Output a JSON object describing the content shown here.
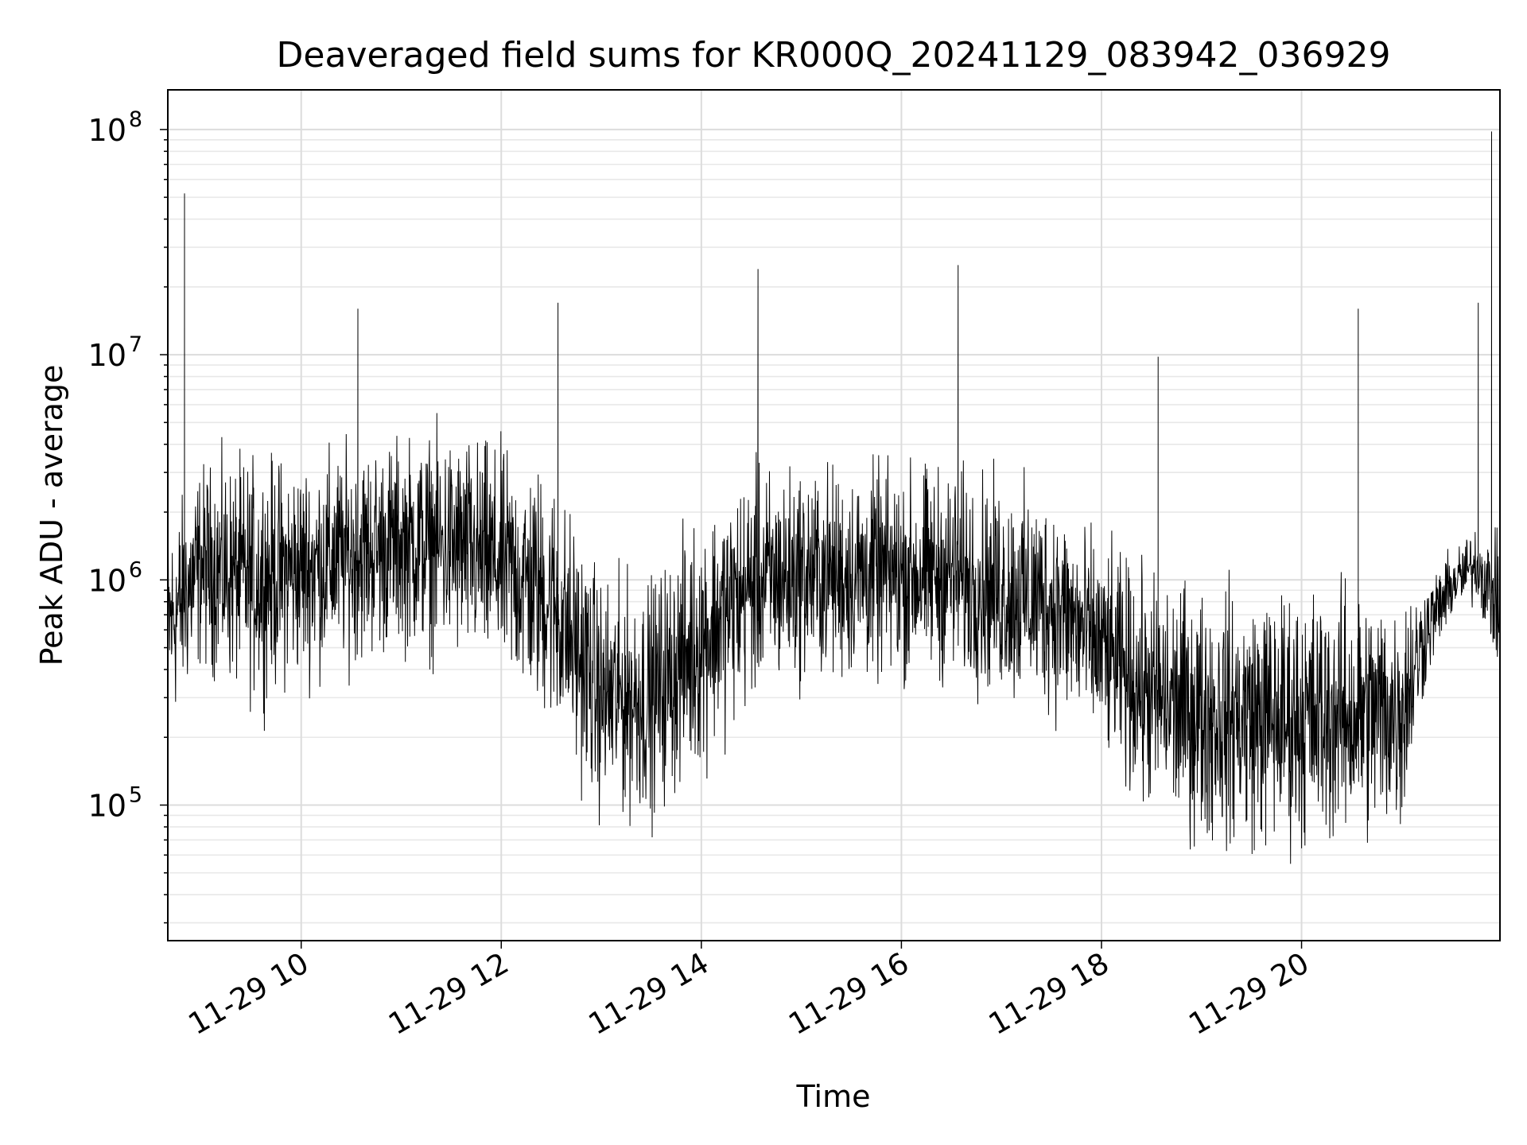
{
  "chart_data": {
    "type": "line",
    "title": "Deaveraged field sums for KR000Q_20241129_083942_036929",
    "xlabel": "Time",
    "ylabel": "Peak ADU - average",
    "yscale": "log",
    "ylim": [
      25000,
      150000000
    ],
    "xlim": [
      "2024-11-29 08:40",
      "2024-11-29 21:59"
    ],
    "grid": true,
    "line_color": "#000000",
    "x_ticks": [
      {
        "t": "2024-11-29 10:00",
        "label": "11-29 10"
      },
      {
        "t": "2024-11-29 12:00",
        "label": "11-29 12"
      },
      {
        "t": "2024-11-29 14:00",
        "label": "11-29 14"
      },
      {
        "t": "2024-11-29 16:00",
        "label": "11-29 16"
      },
      {
        "t": "2024-11-29 18:00",
        "label": "11-29 18"
      },
      {
        "t": "2024-11-29 20:00",
        "label": "11-29 20"
      }
    ],
    "y_ticks": [
      {
        "value": 100000,
        "base": "10",
        "exp": "5"
      },
      {
        "value": 1000000,
        "base": "10",
        "exp": "6"
      },
      {
        "value": 10000000,
        "base": "10",
        "exp": "7"
      },
      {
        "value": 100000000,
        "base": "10",
        "exp": "8"
      }
    ],
    "envelope": [
      {
        "t": "2024-11-29 08:40",
        "low": 150000,
        "high": 2500000
      },
      {
        "t": "2024-11-29 09:00",
        "low": 300000,
        "high": 4500000
      },
      {
        "t": "2024-11-29 09:30",
        "low": 200000,
        "high": 5000000
      },
      {
        "t": "2024-11-29 10:00",
        "low": 250000,
        "high": 5000000
      },
      {
        "t": "2024-11-29 10:30",
        "low": 300000,
        "high": 5500000
      },
      {
        "t": "2024-11-29 11:00",
        "low": 350000,
        "high": 6000000
      },
      {
        "t": "2024-11-29 11:30",
        "low": 300000,
        "high": 6500000
      },
      {
        "t": "2024-11-29 12:00",
        "low": 250000,
        "high": 5500000
      },
      {
        "t": "2024-11-29 12:30",
        "low": 150000,
        "high": 4500000
      },
      {
        "t": "2024-11-29 13:00",
        "low": 60000,
        "high": 1500000
      },
      {
        "t": "2024-11-29 13:30",
        "low": 60000,
        "high": 1500000
      },
      {
        "t": "2024-11-29 14:00",
        "low": 100000,
        "high": 3000000
      },
      {
        "t": "2024-11-29 14:30",
        "low": 200000,
        "high": 4500000
      },
      {
        "t": "2024-11-29 15:00",
        "low": 250000,
        "high": 4500000
      },
      {
        "t": "2024-11-29 15:30",
        "low": 250000,
        "high": 4500000
      },
      {
        "t": "2024-11-29 16:00",
        "low": 250000,
        "high": 4500000
      },
      {
        "t": "2024-11-29 16:30",
        "low": 250000,
        "high": 4500000
      },
      {
        "t": "2024-11-29 17:00",
        "low": 200000,
        "high": 4000000
      },
      {
        "t": "2024-11-29 17:30",
        "low": 180000,
        "high": 3500000
      },
      {
        "t": "2024-11-29 18:00",
        "low": 120000,
        "high": 2000000
      },
      {
        "t": "2024-11-29 18:30",
        "low": 60000,
        "high": 1500000
      },
      {
        "t": "2024-11-29 19:00",
        "low": 45000,
        "high": 1400000
      },
      {
        "t": "2024-11-29 19:30",
        "low": 42000,
        "high": 1400000
      },
      {
        "t": "2024-11-29 20:00",
        "low": 42000,
        "high": 1400000
      },
      {
        "t": "2024-11-29 20:30",
        "low": 45000,
        "high": 1400000
      },
      {
        "t": "2024-11-29 21:00",
        "low": 50000,
        "high": 1400000
      },
      {
        "t": "2024-11-29 21:15",
        "low": 300000,
        "high": 1200000
      },
      {
        "t": "2024-11-29 21:30",
        "low": 600000,
        "high": 1500000
      },
      {
        "t": "2024-11-29 21:45",
        "low": 700000,
        "high": 2000000
      },
      {
        "t": "2024-11-29 21:59",
        "low": 300000,
        "high": 1800000
      }
    ],
    "spikes": [
      {
        "t": "2024-11-29 08:50",
        "value": 52000000
      },
      {
        "t": "2024-11-29 10:34",
        "value": 16000000
      },
      {
        "t": "2024-11-29 12:34",
        "value": 17000000
      },
      {
        "t": "2024-11-29 14:34",
        "value": 24000000
      },
      {
        "t": "2024-11-29 16:34",
        "value": 25000000
      },
      {
        "t": "2024-11-29 18:34",
        "value": 9800000
      },
      {
        "t": "2024-11-29 20:34",
        "value": 16000000
      },
      {
        "t": "2024-11-29 21:46",
        "value": 17000000
      },
      {
        "t": "2024-11-29 21:54",
        "value": 98000000
      }
    ]
  }
}
